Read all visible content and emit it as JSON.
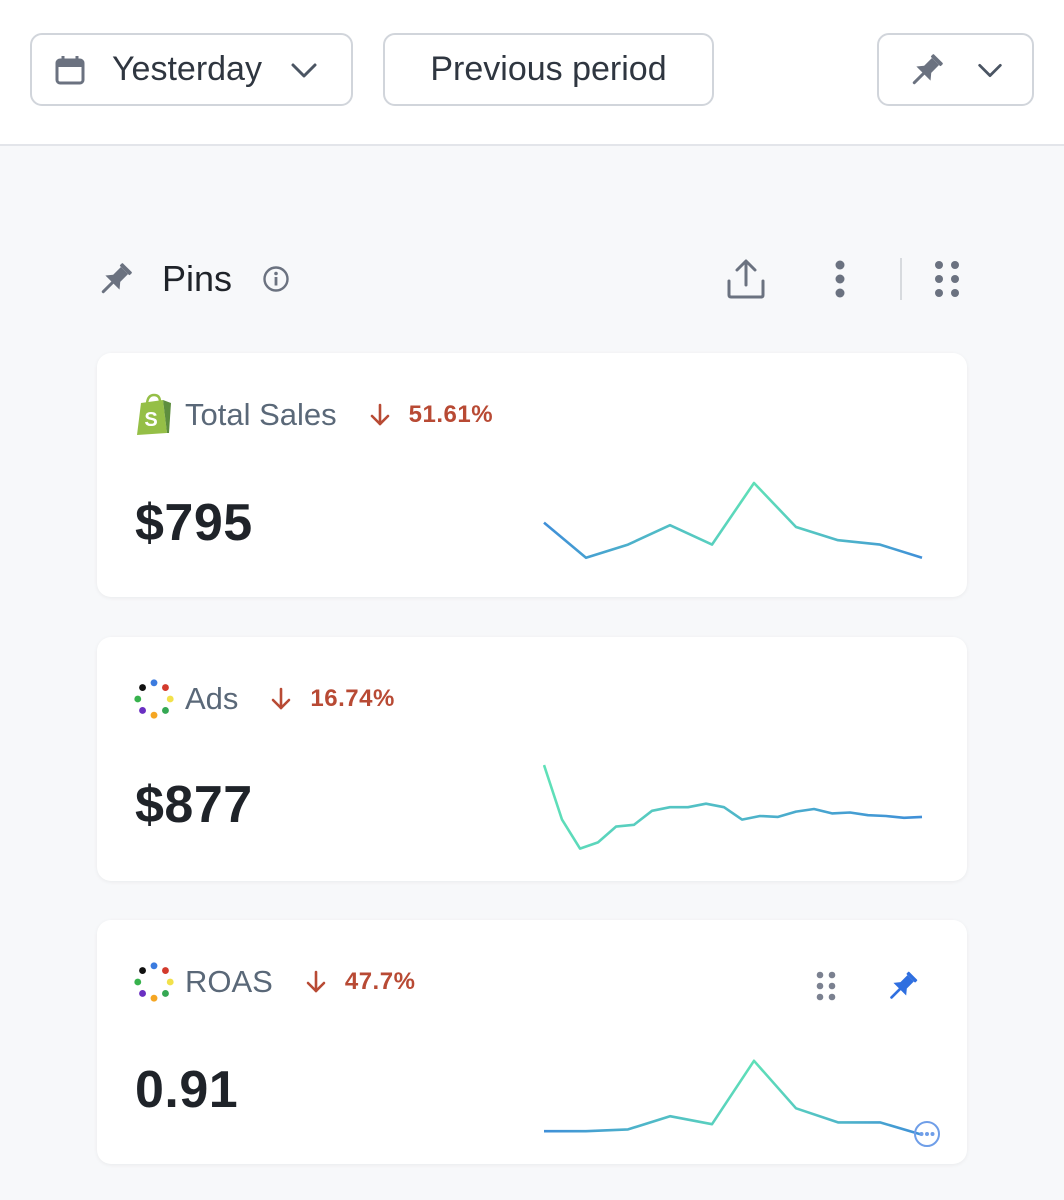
{
  "toolbar": {
    "date_range": "Yesterday",
    "compare": "Previous period",
    "icons": [
      "calendar-icon",
      "chevron-down-icon",
      "pin-icon"
    ]
  },
  "section": {
    "title": "Pins",
    "icons": [
      "pin-icon",
      "info-icon",
      "share-icon",
      "more-vertical-icon",
      "drag-grid-icon"
    ]
  },
  "cards": [
    {
      "name": "Total Sales",
      "source_icon": "shopify-icon",
      "change": "51.61%",
      "direction": "down",
      "value": "$795",
      "trend": [
        0.55,
        0.15,
        0.3,
        0.52,
        0.3,
        1.0,
        0.5,
        0.35,
        0.3,
        0.15
      ]
    },
    {
      "name": "Ads",
      "source_icon": "ads-dots-icon",
      "change": "16.74%",
      "direction": "down",
      "value": "$877",
      "trend": [
        1.0,
        0.38,
        0.05,
        0.12,
        0.3,
        0.32,
        0.48,
        0.52,
        0.52,
        0.56,
        0.52,
        0.38,
        0.42,
        0.41,
        0.47,
        0.5,
        0.45,
        0.46,
        0.43,
        0.42,
        0.4,
        0.41
      ]
    },
    {
      "name": "ROAS",
      "source_icon": "ads-dots-icon",
      "change": "47.7%",
      "direction": "down",
      "value": "0.91",
      "trend": [
        0.1,
        0.1,
        0.12,
        0.27,
        0.18,
        0.9,
        0.36,
        0.2,
        0.2,
        0.06
      ],
      "actions": [
        "drag-handle-icon",
        "pin-filled-icon",
        "more-circle-icon"
      ]
    }
  ],
  "colors": {
    "negative": "#b84a34",
    "spark_start": "#3f8fd8",
    "spark_peak": "#5fe0b8",
    "pin_active": "#2f6fe0"
  }
}
